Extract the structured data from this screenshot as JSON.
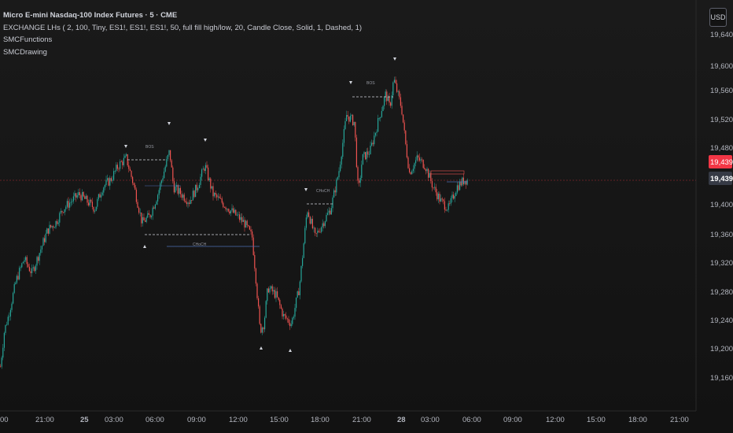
{
  "legend": {
    "title": "Micro E-mini Nasdaq-100 Index Futures · 5 · CME",
    "indicator1": "EXCHANGE LHs ( 2, 100, Tiny, ES1!, ES1!, ES1!, 50, full fill high/low, 20, Candle Close, Solid, 1, Dashed, 1)",
    "indicator2": "SMCFunctions",
    "indicator3": "SMCDrawing"
  },
  "currency_button": "USD",
  "price_axis": {
    "ticks": [
      "19,640.00",
      "19,600.00",
      "19,560.00",
      "19,520.00",
      "19,480.00",
      "19,400.00",
      "19,360.00",
      "19,320.00",
      "19,280.00",
      "19,240.00",
      "19,200.00",
      "19,160.00"
    ],
    "last_price_label": "19,439.25",
    "crosshair_price_label": "19,439.25"
  },
  "time_axis": {
    "ticks": [
      "00",
      "21:00",
      "25",
      "03:00",
      "06:00",
      "09:00",
      "12:00",
      "15:00",
      "18:00",
      "21:00",
      "28",
      "03:00",
      "06:00",
      "09:00",
      "12:00",
      "15:00",
      "18:00",
      "21:00"
    ]
  },
  "annotations": {
    "bos1": "BOS",
    "bos2": "BOS",
    "choch1": "CHoCH",
    "choch2": "CHoCH"
  },
  "colors": {
    "up": "#26a69a",
    "down": "#ef5350",
    "last_price": "#f23645",
    "crosshair_label": "#363a45"
  },
  "chart_data": {
    "type": "candlestick",
    "ylim": [
      19140,
      19660
    ],
    "approx_close_path": [
      [
        0,
        19180
      ],
      [
        5,
        19230
      ],
      [
        10,
        19250
      ],
      [
        20,
        19300
      ],
      [
        30,
        19330
      ],
      [
        40,
        19310
      ],
      [
        50,
        19340
      ],
      [
        60,
        19370
      ],
      [
        70,
        19380
      ],
      [
        80,
        19400
      ],
      [
        90,
        19410
      ],
      [
        100,
        19420
      ],
      [
        110,
        19410
      ],
      [
        120,
        19400
      ],
      [
        130,
        19430
      ],
      [
        140,
        19440
      ],
      [
        150,
        19460
      ],
      [
        160,
        19470
      ],
      [
        170,
        19430
      ],
      [
        180,
        19380
      ],
      [
        190,
        19390
      ],
      [
        200,
        19420
      ],
      [
        210,
        19460
      ],
      [
        215,
        19480
      ],
      [
        220,
        19430
      ],
      [
        230,
        19420
      ],
      [
        240,
        19410
      ],
      [
        250,
        19430
      ],
      [
        260,
        19460
      ],
      [
        270,
        19420
      ],
      [
        280,
        19410
      ],
      [
        290,
        19400
      ],
      [
        300,
        19390
      ],
      [
        310,
        19380
      ],
      [
        320,
        19360
      ],
      [
        325,
        19300
      ],
      [
        330,
        19230
      ],
      [
        335,
        19240
      ],
      [
        340,
        19290
      ],
      [
        350,
        19280
      ],
      [
        360,
        19250
      ],
      [
        370,
        19240
      ],
      [
        380,
        19290
      ],
      [
        390,
        19400
      ],
      [
        400,
        19360
      ],
      [
        410,
        19380
      ],
      [
        420,
        19400
      ],
      [
        430,
        19450
      ],
      [
        440,
        19530
      ],
      [
        450,
        19520
      ],
      [
        455,
        19420
      ],
      [
        460,
        19470
      ],
      [
        470,
        19480
      ],
      [
        480,
        19520
      ],
      [
        490,
        19560
      ],
      [
        495,
        19540
      ],
      [
        500,
        19580
      ],
      [
        505,
        19560
      ],
      [
        510,
        19540
      ],
      [
        515,
        19490
      ],
      [
        520,
        19450
      ],
      [
        530,
        19470
      ],
      [
        540,
        19460
      ],
      [
        550,
        19430
      ],
      [
        560,
        19410
      ],
      [
        570,
        19400
      ],
      [
        580,
        19430
      ],
      [
        590,
        19440
      ],
      [
        595,
        19439.25
      ]
    ]
  }
}
